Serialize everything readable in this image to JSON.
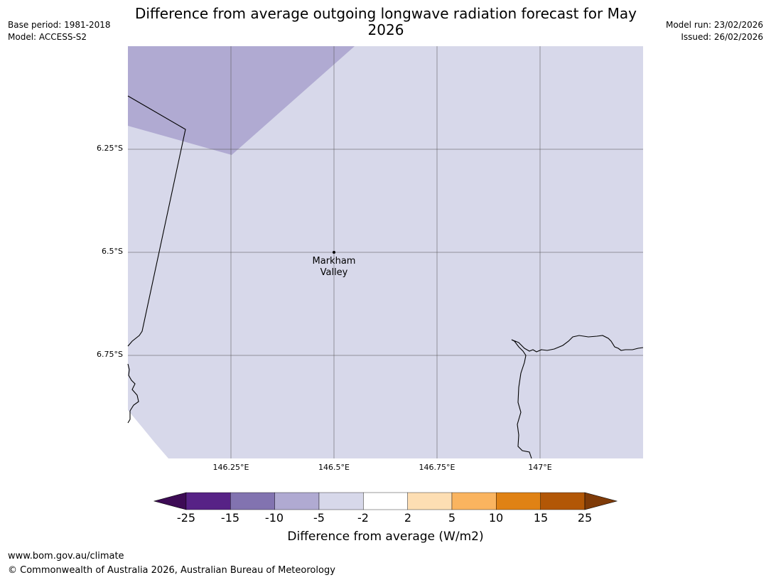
{
  "title": "Difference from average outgoing longwave radiation forecast for May 2026",
  "meta_left": {
    "base_period": "Base period: 1981-2018",
    "model": "Model: ACCESS-S2"
  },
  "meta_right": {
    "model_run": "Model run: 23/02/2026",
    "issued": "Issued: 26/02/2026"
  },
  "map": {
    "lat_labels": [
      "6.25°S",
      "6.5°S",
      "6.75°S"
    ],
    "lon_labels": [
      "146.25°E",
      "146.5°E",
      "146.75°E",
      "147°E"
    ],
    "place": {
      "line1": "Markham",
      "line2": "Valley"
    },
    "region_colors": {
      "minus10_to_minus5": "#b0aad2",
      "minus5_to_minus2": "#d7d8ea"
    }
  },
  "colorbar": {
    "ticks": [
      "-25",
      "-15",
      "-10",
      "-5",
      "-2",
      "2",
      "5",
      "10",
      "15",
      "25"
    ],
    "colors": [
      "#3d0b55",
      "#572286",
      "#8273b0",
      "#b0aad2",
      "#d7d8ea",
      "#ffffff",
      "#fddeb3",
      "#fab45f",
      "#e08214",
      "#b25706",
      "#7f3b08"
    ],
    "label": "Difference from average (W/m2)"
  },
  "footer": {
    "url": "www.bom.gov.au/climate",
    "copyright": "© Commonwealth of Australia 2026, Australian Bureau of Meteorology"
  }
}
